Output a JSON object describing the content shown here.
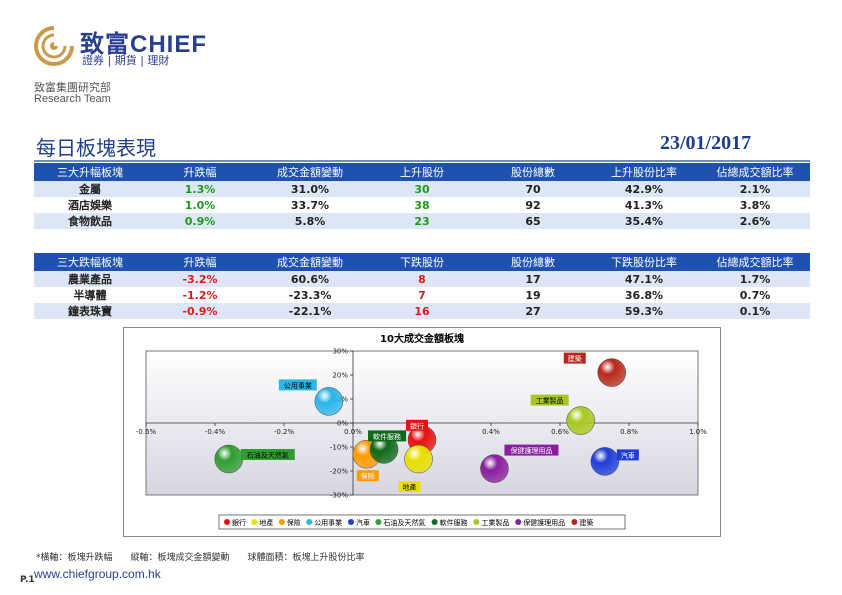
{
  "brand": {
    "name_cn": "致富",
    "name_en": "CHIEF",
    "tagline": "證券 | 期貨 | 理財"
  },
  "department": {
    "cn": "致富集團研究部",
    "en": "Research Team"
  },
  "report": {
    "title": "每日板塊表現",
    "date": "23/01/2017"
  },
  "up_table": {
    "headers": [
      "三大升幅板塊",
      "升跌幅",
      "成交金額變動",
      "上升股份",
      "股份總數",
      "上升股份比率",
      "佔總成交額比率"
    ],
    "rows": [
      [
        "金屬",
        "1.3%",
        "31.0%",
        "30",
        "70",
        "42.9%",
        "2.1%"
      ],
      [
        "酒店娛樂",
        "1.0%",
        "33.7%",
        "38",
        "92",
        "41.3%",
        "3.8%"
      ],
      [
        "食物飲品",
        "0.9%",
        "5.8%",
        "23",
        "65",
        "35.4%",
        "2.6%"
      ]
    ]
  },
  "down_table": {
    "headers": [
      "三大跌幅板塊",
      "升跌幅",
      "成交金額變動",
      "下跌股份",
      "股份總數",
      "下跌股份比率",
      "佔總成交額比率"
    ],
    "rows": [
      [
        "農業產品",
        "-3.2%",
        "60.6%",
        "8",
        "17",
        "47.1%",
        "1.7%"
      ],
      [
        "半導體",
        "-1.2%",
        "-23.3%",
        "7",
        "19",
        "36.8%",
        "0.7%"
      ],
      [
        "鐘表珠寶",
        "-0.9%",
        "-22.1%",
        "16",
        "27",
        "59.3%",
        "0.1%"
      ]
    ]
  },
  "chart_data": {
    "type": "scatter",
    "title": "10大成交金額板塊",
    "x_ticks": [
      "-0.6%",
      "-0.4%",
      "-0.2%",
      "0.0%",
      "0.2%",
      "0.4%",
      "0.6%",
      "0.8%",
      "1.0%"
    ],
    "y_ticks": [
      "30%",
      "20%",
      "10%",
      "0%",
      "-10%",
      "-20%",
      "-30%"
    ],
    "xlim": [
      -0.6,
      1.0
    ],
    "ylim": [
      -30,
      30
    ],
    "grid": false,
    "legend_position": "bottom",
    "series": [
      {
        "name": "銀行",
        "x": 0.2,
        "y": -7,
        "color": "#e81010"
      },
      {
        "name": "地產",
        "x": 0.19,
        "y": -15,
        "color": "#e8e000"
      },
      {
        "name": "保險",
        "x": 0.04,
        "y": -13,
        "color": "#ff9a00"
      },
      {
        "name": "公用事業",
        "x": -0.07,
        "y": 9,
        "color": "#2bb5e8"
      },
      {
        "name": "汽車",
        "x": 0.73,
        "y": -16,
        "color": "#1e3ed8"
      },
      {
        "name": "石油及天然氣",
        "x": -0.36,
        "y": -15,
        "color": "#2f9e2f"
      },
      {
        "name": "軟件服務",
        "x": 0.09,
        "y": -11,
        "color": "#0e6a1a"
      },
      {
        "name": "工業製品",
        "x": 0.66,
        "y": 1,
        "color": "#a8c820"
      },
      {
        "name": "保健護理用品",
        "x": 0.41,
        "y": -19,
        "color": "#8a1e9e"
      },
      {
        "name": "建築",
        "x": 0.75,
        "y": 21,
        "color": "#b8281a"
      }
    ]
  },
  "footnote": "*橫軸：板塊升跌幅　　縱軸：板塊成交金額變動　　球體面積：板塊上升股份比率",
  "page_number": "P.1",
  "website": "www.chiefgroup.com.hk"
}
